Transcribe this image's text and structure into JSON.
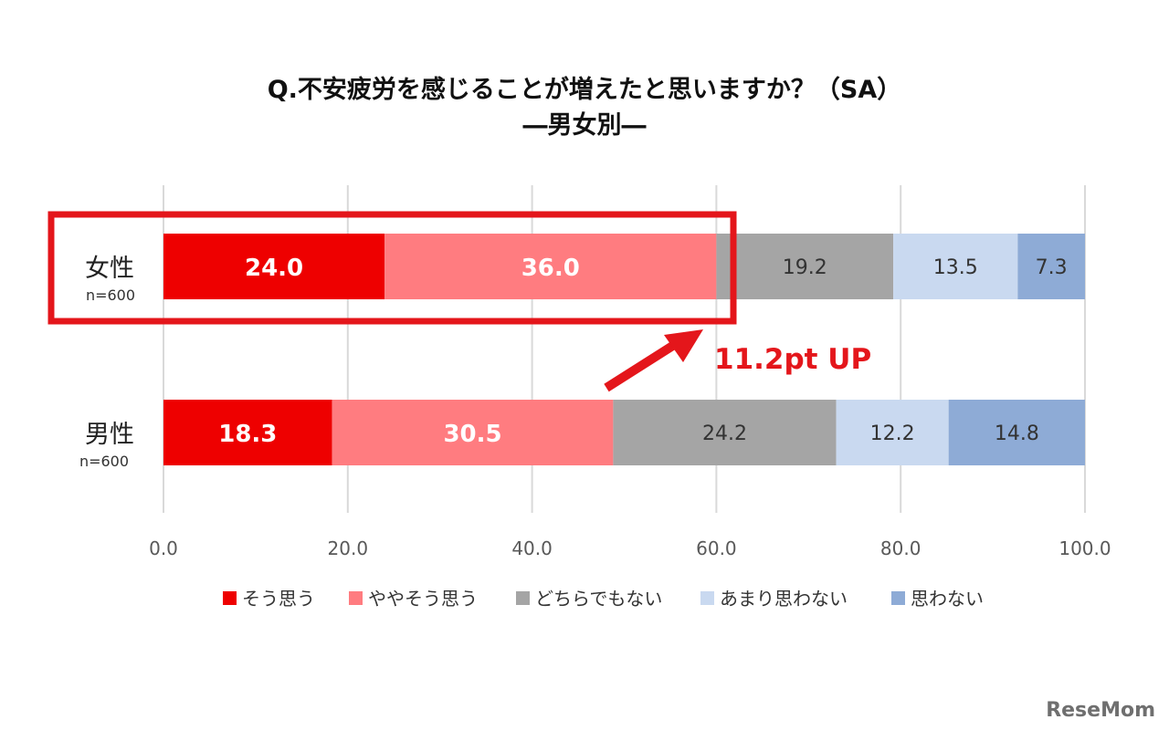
{
  "chart_data": {
    "type": "bar",
    "orientation": "horizontal",
    "stacked": true,
    "title": "Q.不安疲労を感じることが増えたと思いますか？（SA）",
    "subtitle": "―男女別―",
    "xlim": [
      0,
      100
    ],
    "x_ticks": [
      "0.0",
      "20.0",
      "40.0",
      "60.0",
      "80.0",
      "100.0"
    ],
    "grid": true,
    "legend_position": "bottom",
    "categories": [
      {
        "label": "女性",
        "n": "n=600"
      },
      {
        "label": "男性",
        "n": "n=600"
      }
    ],
    "series": [
      {
        "name": "そう思う",
        "color": "#ee0000",
        "values": [
          24.0,
          18.3
        ],
        "labels": [
          "24.0",
          "18.3"
        ]
      },
      {
        "name": "ややそう思う",
        "color": "#ff7c80",
        "values": [
          36.0,
          30.5
        ],
        "labels": [
          "36.0",
          "30.5"
        ]
      },
      {
        "name": "どちらでもない",
        "color": "#a5a5a5",
        "values": [
          19.2,
          24.2
        ],
        "labels": [
          "19.2",
          "24.2"
        ]
      },
      {
        "name": "あまり思わない",
        "color": "#c9d9f0",
        "values": [
          13.5,
          12.2
        ],
        "labels": [
          "13.5",
          "12.2"
        ]
      },
      {
        "name": "思わない",
        "color": "#8eabd6",
        "values": [
          7.3,
          14.8
        ],
        "labels": [
          "7.3",
          "14.8"
        ]
      }
    ],
    "annotation": {
      "text": "11.2pt UP",
      "color": "#e4161b"
    }
  },
  "watermark": "ReseMom"
}
